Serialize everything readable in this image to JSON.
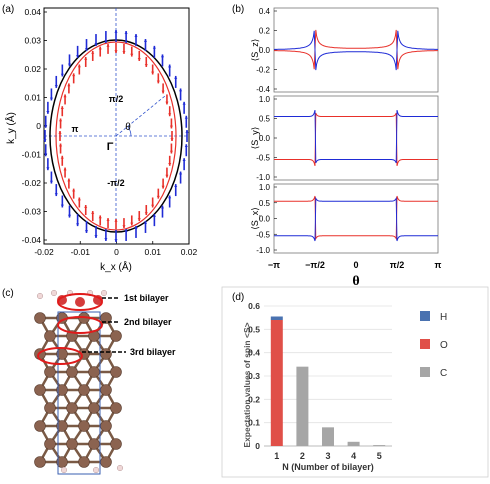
{
  "panel_a": {
    "tag": "(a)",
    "ylabel": "k_y (Å)",
    "xlabel": "k_x (Å)",
    "x_ticks": [
      "-0.02",
      "-0.01",
      "0",
      "0.01",
      "0.02"
    ],
    "y_ticks": [
      "0.04",
      "0.03",
      "0.02",
      "0.01",
      "0",
      "-0.01",
      "-0.02",
      "-0.03",
      "-0.04"
    ],
    "label_top": "π/2",
    "label_bottom": "-π/2",
    "label_left": "π",
    "label_theta": "θ",
    "label_gamma": "Γ"
  },
  "panel_b": {
    "tag": "(b)",
    "xlabel": "θ",
    "x_ticks": [
      "−π",
      "−π/2",
      "0",
      "π/2",
      "π"
    ],
    "sub": [
      {
        "ylabel": "⟨S_z⟩",
        "ticks": [
          "0.4",
          "0.2",
          "0.0",
          "-0.2",
          "-0.4"
        ]
      },
      {
        "ylabel": "⟨S_y⟩",
        "ticks": [
          "1.0",
          "0.5",
          "0.0",
          "-0.5",
          "-1.0"
        ]
      },
      {
        "ylabel": "⟨S_x⟩",
        "ticks": [
          "1.0",
          "0.5",
          "0.0",
          "-0.5",
          "-1.0"
        ]
      }
    ]
  },
  "panel_c": {
    "tag": "(c)",
    "labels": [
      "1st bilayer",
      "2nd bilayer",
      "3rd bilayer"
    ]
  },
  "panel_d": {
    "tag": "(d)",
    "legend": [
      "H",
      "O",
      "C"
    ]
  },
  "colors": {
    "red": "#e8302a",
    "blue": "#1f2bd6",
    "bar_h": "#4a72b0",
    "bar_o": "#e04f48",
    "bar_c": "#a6a6a6"
  },
  "chart_data": {
    "type": "bar",
    "ylabel": "Expectation values of spin <S>",
    "xlabel": "N (Number of bilayer)",
    "categories": [
      "1",
      "2",
      "3",
      "4",
      "5"
    ],
    "ylim": [
      0,
      0.6
    ],
    "y_ticks": [
      "0.6",
      "0.5",
      "0.4",
      "0.3",
      "0.2",
      "0.1",
      "0"
    ],
    "series": [
      {
        "name": "H",
        "values": [
          0.015,
          0,
          0,
          0,
          0
        ]
      },
      {
        "name": "O",
        "values": [
          0.54,
          0,
          0,
          0,
          0
        ]
      },
      {
        "name": "C",
        "values": [
          0,
          0.34,
          0.08,
          0.018,
          0.004
        ]
      }
    ],
    "legend": "right"
  }
}
